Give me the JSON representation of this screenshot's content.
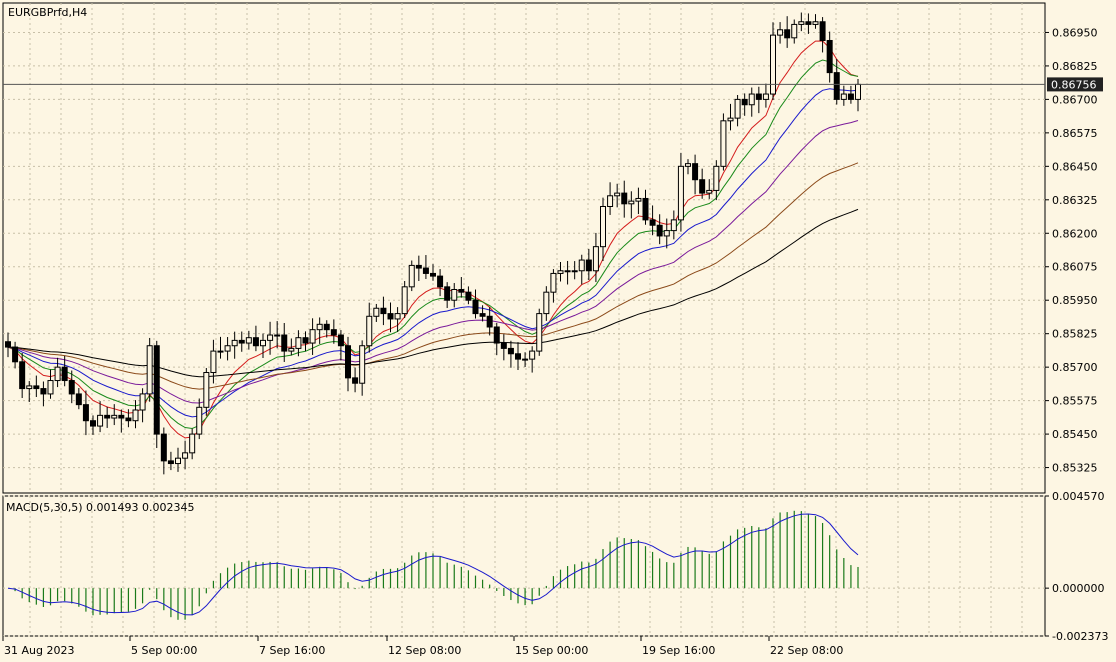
{
  "chart_data": {
    "symbol_label": "EURGBPrfd,H4",
    "type": "candlestick",
    "price_axis": {
      "ticks": [
        "0.86950",
        "0.86825",
        "0.86700",
        "0.86575",
        "0.86450",
        "0.86325",
        "0.86200",
        "0.86075",
        "0.85950",
        "0.85825",
        "0.85700",
        "0.85575",
        "0.85450",
        "0.85325"
      ],
      "range": [
        0.8523,
        0.8706
      ]
    },
    "current_price": "0.86756",
    "time_axis": [
      "31 Aug 2023",
      "5 Sep 00:00",
      "7 Sep 16:00",
      "12 Sep 08:00",
      "15 Sep 00:00",
      "19 Sep 16:00",
      "22 Sep 08:00"
    ],
    "closes": [
      0.85775,
      0.8572,
      0.8562,
      0.8563,
      0.8562,
      0.856,
      0.8565,
      0.857,
      0.8565,
      0.856,
      0.8556,
      0.855,
      0.8548,
      0.8552,
      0.8551,
      0.8552,
      0.8551,
      0.855,
      0.8554,
      0.856,
      0.8578,
      0.8545,
      0.8535,
      0.8534,
      0.8536,
      0.8538,
      0.8545,
      0.8555,
      0.8568,
      0.8576,
      0.8576,
      0.8578,
      0.858,
      0.8579,
      0.8581,
      0.8578,
      0.858,
      0.8582,
      0.8582,
      0.8576,
      0.8577,
      0.8581,
      0.8579,
      0.8584,
      0.8586,
      0.8584,
      0.8582,
      0.8578,
      0.8566,
      0.8564,
      0.8578,
      0.8589,
      0.8592,
      0.859,
      0.8588,
      0.859,
      0.86,
      0.8608,
      0.8607,
      0.8605,
      0.8604,
      0.86,
      0.8595,
      0.8599,
      0.8598,
      0.8595,
      0.859,
      0.8589,
      0.8585,
      0.8579,
      0.8577,
      0.8575,
      0.8573,
      0.8573,
      0.8576,
      0.859,
      0.8598,
      0.8605,
      0.8606,
      0.8606,
      0.8606,
      0.861,
      0.8606,
      0.8615,
      0.863,
      0.8634,
      0.8635,
      0.8631,
      0.8632,
      0.8633,
      0.8625,
      0.8623,
      0.8619,
      0.8621,
      0.8625,
      0.8645,
      0.8646,
      0.864,
      0.8635,
      0.8636,
      0.8645,
      0.8662,
      0.8663,
      0.867,
      0.8668,
      0.8672,
      0.867,
      0.8672,
      0.8694,
      0.8696,
      0.8693,
      0.8698,
      0.8699,
      0.8698,
      0.8699,
      0.8692,
      0.868,
      0.867,
      0.8672,
      0.867,
      0.86756
    ],
    "moving_averages": [
      {
        "color": "#d41c1c"
      },
      {
        "color": "#1a8a1a"
      },
      {
        "color": "#1a1acc"
      },
      {
        "color": "#7a1a9a"
      },
      {
        "color": "#8b4a1a"
      },
      {
        "color": "#000000"
      }
    ],
    "macd": {
      "label": "MACD(5,30,5) 0.001493 0.002345",
      "ticks": [
        "0.004570",
        "0.000000",
        "-0.002373"
      ],
      "range": [
        -0.002373,
        0.00457
      ],
      "hist_color": "#1a7a1a",
      "signal_color": "#1a1acc"
    }
  }
}
